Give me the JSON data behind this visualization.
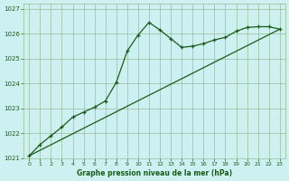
{
  "title": "Graphe pression niveau de la mer (hPa)",
  "bg_color": "#cdf0f0",
  "grid_color": "#99bb99",
  "line_color": "#1a5c1a",
  "xlim": [
    -0.5,
    23.5
  ],
  "ylim": [
    1021.0,
    1027.2
  ],
  "xticks": [
    0,
    1,
    2,
    3,
    4,
    5,
    6,
    7,
    8,
    9,
    10,
    11,
    12,
    13,
    14,
    15,
    16,
    17,
    18,
    19,
    20,
    21,
    22,
    23
  ],
  "yticks": [
    1021,
    1022,
    1023,
    1024,
    1025,
    1026,
    1027
  ],
  "series1_x": [
    0,
    1,
    2,
    3,
    4,
    5,
    6,
    7,
    8,
    9,
    10,
    11,
    12,
    13,
    14,
    15,
    16,
    17,
    18,
    19,
    20,
    21,
    22,
    23
  ],
  "series1_y": [
    1021.1,
    1021.55,
    1021.9,
    1022.25,
    1022.65,
    1022.85,
    1023.05,
    1023.3,
    1024.05,
    1025.3,
    1025.95,
    1026.45,
    1026.15,
    1025.8,
    1025.45,
    1025.5,
    1025.6,
    1025.75,
    1025.85,
    1026.1,
    1026.25,
    1026.28,
    1026.28,
    1026.18
  ],
  "series2_x": [
    0,
    23
  ],
  "series2_y": [
    1021.1,
    1026.18
  ]
}
